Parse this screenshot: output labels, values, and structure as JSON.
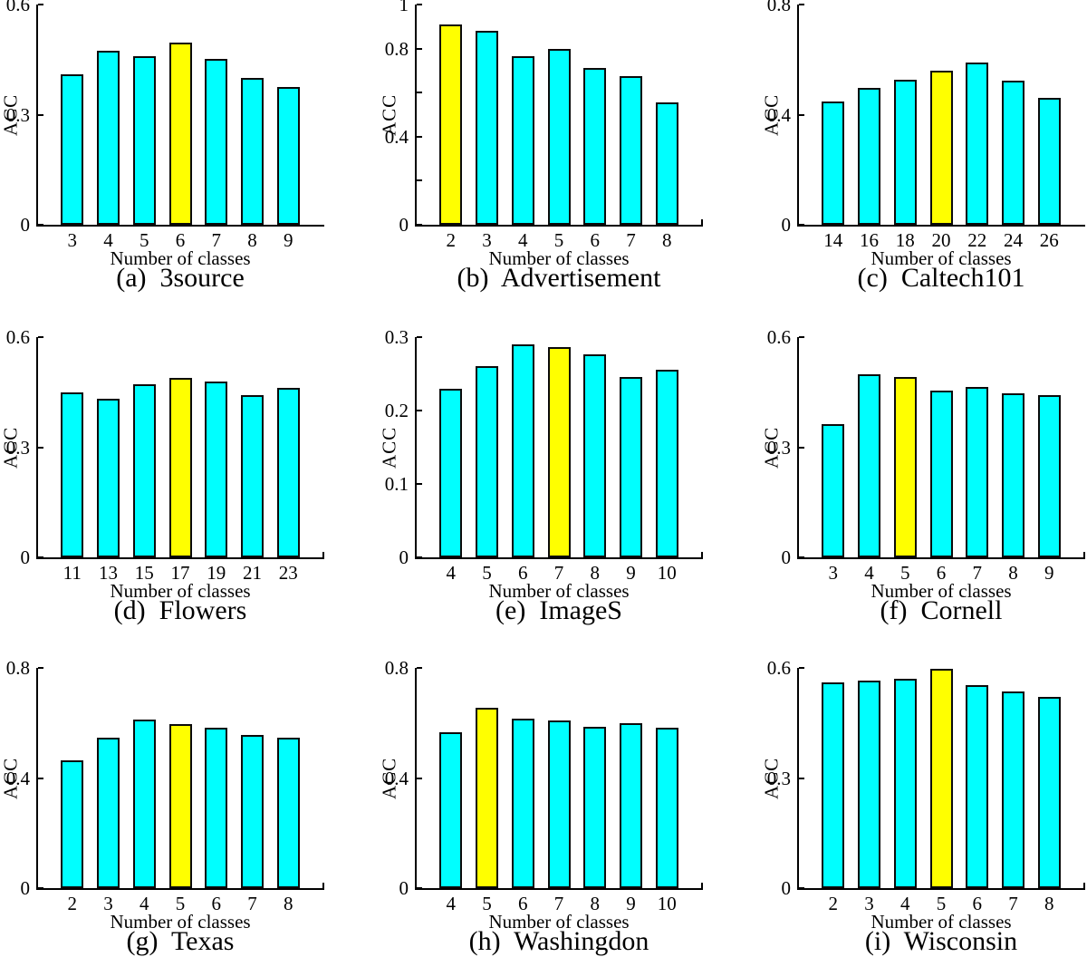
{
  "figure_type": "3x3 grid of bar charts from a paper, ACC vs number of classes per dataset",
  "colors": {
    "bar_fill": "#00ffff",
    "highlight_fill": "#ffff00",
    "bar_edge": "#0a0a0a",
    "axis": "#000000",
    "text": "#000000",
    "background": "#ffffff"
  },
  "chart_data": [
    {
      "type": "bar",
      "title": "(a)  3source",
      "xlabel": "Number of classes",
      "ylabel": "ACC",
      "categories": [
        "3",
        "4",
        "5",
        "6",
        "7",
        "8",
        "9"
      ],
      "values": [
        0.41,
        0.475,
        0.46,
        0.497,
        0.452,
        0.4,
        0.376
      ],
      "highlight_index": 3,
      "highlight_category": "6",
      "ylim": [
        0,
        0.6
      ],
      "yticks": [
        0,
        0.3,
        0.6
      ],
      "ytick_labels": [
        "0",
        "0.3",
        "0.6"
      ],
      "yticks_minor": [],
      "axis_end_tick": false,
      "grid": false,
      "legend": "none"
    },
    {
      "type": "bar",
      "title": "(b)  Advertisement",
      "xlabel": "Number of classes",
      "ylabel": "ACC",
      "categories": [
        "2",
        "3",
        "4",
        "5",
        "6",
        "7",
        "8"
      ],
      "values": [
        0.908,
        0.88,
        0.765,
        0.798,
        0.71,
        0.676,
        0.555
      ],
      "highlight_index": 0,
      "highlight_category": "2",
      "ylim": [
        0,
        1
      ],
      "yticks": [
        0,
        0.4,
        0.8,
        1
      ],
      "ytick_labels": [
        "0",
        "0.4",
        "0.8",
        "1"
      ],
      "yticks_minor": [
        0.2,
        0.6
      ],
      "axis_end_tick": true,
      "grid": false,
      "legend": "none"
    },
    {
      "type": "bar",
      "title": "(c)  Caltech101",
      "xlabel": "Number of classes",
      "ylabel": "ACC",
      "categories": [
        "14",
        "16",
        "18",
        "20",
        "22",
        "24",
        "26"
      ],
      "values": [
        0.447,
        0.498,
        0.528,
        0.56,
        0.588,
        0.522,
        0.462
      ],
      "highlight_index": 3,
      "highlight_category": "20",
      "ylim": [
        0,
        0.8
      ],
      "yticks": [
        0,
        0.4,
        0.8
      ],
      "ytick_labels": [
        "0",
        "0.4",
        "0.8"
      ],
      "yticks_minor": [],
      "axis_end_tick": false,
      "grid": false,
      "legend": "none"
    },
    {
      "type": "bar",
      "title": "(d)  Flowers",
      "xlabel": "Number of classes",
      "ylabel": "ACC",
      "categories": [
        "11",
        "13",
        "15",
        "17",
        "19",
        "21",
        "23"
      ],
      "values": [
        0.45,
        0.432,
        0.472,
        0.489,
        0.479,
        0.441,
        0.461
      ],
      "highlight_index": 3,
      "highlight_category": "17",
      "ylim": [
        0,
        0.6
      ],
      "yticks": [
        0,
        0.3,
        0.6
      ],
      "ytick_labels": [
        "0",
        "0.3",
        "0.6"
      ],
      "yticks_minor": [],
      "axis_end_tick": true,
      "grid": false,
      "legend": "none"
    },
    {
      "type": "bar",
      "title": "(e)  ImageS",
      "xlabel": "Number of classes",
      "ylabel": "ACC",
      "categories": [
        "4",
        "5",
        "6",
        "7",
        "8",
        "9",
        "10"
      ],
      "values": [
        0.23,
        0.26,
        0.29,
        0.286,
        0.276,
        0.246,
        0.256
      ],
      "highlight_index": 3,
      "highlight_category": "7",
      "ylim": [
        0,
        0.3
      ],
      "yticks": [
        0,
        0.1,
        0.2,
        0.3
      ],
      "ytick_labels": [
        "0",
        "0.1",
        "0.2",
        "0.3"
      ],
      "yticks_minor": [],
      "axis_end_tick": true,
      "grid": false,
      "legend": "none"
    },
    {
      "type": "bar",
      "title": "(f)  Cornell",
      "xlabel": "Number of classes",
      "ylabel": "ACC",
      "categories": [
        "3",
        "4",
        "5",
        "6",
        "7",
        "8",
        "9"
      ],
      "values": [
        0.363,
        0.499,
        0.492,
        0.454,
        0.463,
        0.448,
        0.443
      ],
      "highlight_index": 2,
      "highlight_category": "5",
      "ylim": [
        0,
        0.6
      ],
      "yticks": [
        0,
        0.3,
        0.6
      ],
      "ytick_labels": [
        "0",
        "0.3",
        "0.6"
      ],
      "yticks_minor": [],
      "axis_end_tick": true,
      "grid": false,
      "legend": "none"
    },
    {
      "type": "bar",
      "title": "(g)  Texas",
      "xlabel": "Number of classes",
      "ylabel": "ACC",
      "categories": [
        "2",
        "3",
        "4",
        "5",
        "6",
        "7",
        "8"
      ],
      "values": [
        0.465,
        0.545,
        0.613,
        0.595,
        0.584,
        0.556,
        0.547
      ],
      "highlight_index": 3,
      "highlight_category": "5",
      "ylim": [
        0,
        0.8
      ],
      "yticks": [
        0,
        0.4,
        0.8
      ],
      "ytick_labels": [
        "0",
        "0.4",
        "0.8"
      ],
      "yticks_minor": [],
      "axis_end_tick": true,
      "grid": false,
      "legend": "none"
    },
    {
      "type": "bar",
      "title": "(h)  Washingdon",
      "xlabel": "Number of classes",
      "ylabel": "ACC",
      "categories": [
        "4",
        "5",
        "6",
        "7",
        "8",
        "9",
        "10"
      ],
      "values": [
        0.567,
        0.656,
        0.617,
        0.609,
        0.587,
        0.598,
        0.583
      ],
      "highlight_index": 1,
      "highlight_category": "5",
      "ylim": [
        0,
        0.8
      ],
      "yticks": [
        0,
        0.4,
        0.8
      ],
      "ytick_labels": [
        "0",
        "0.4",
        "0.8"
      ],
      "yticks_minor": [],
      "axis_end_tick": true,
      "grid": false,
      "legend": "none"
    },
    {
      "type": "bar",
      "title": "(i)  Wisconsin",
      "xlabel": "Number of classes",
      "ylabel": "ACC",
      "categories": [
        "2",
        "3",
        "4",
        "5",
        "6",
        "7",
        "8"
      ],
      "values": [
        0.561,
        0.566,
        0.571,
        0.598,
        0.553,
        0.535,
        0.521
      ],
      "highlight_index": 3,
      "highlight_category": "5",
      "ylim": [
        0,
        0.6
      ],
      "yticks": [
        0,
        0.3,
        0.6
      ],
      "ytick_labels": [
        "0",
        "0.3",
        "0.6"
      ],
      "yticks_minor": [],
      "axis_end_tick": true,
      "grid": false,
      "legend": "none"
    }
  ]
}
